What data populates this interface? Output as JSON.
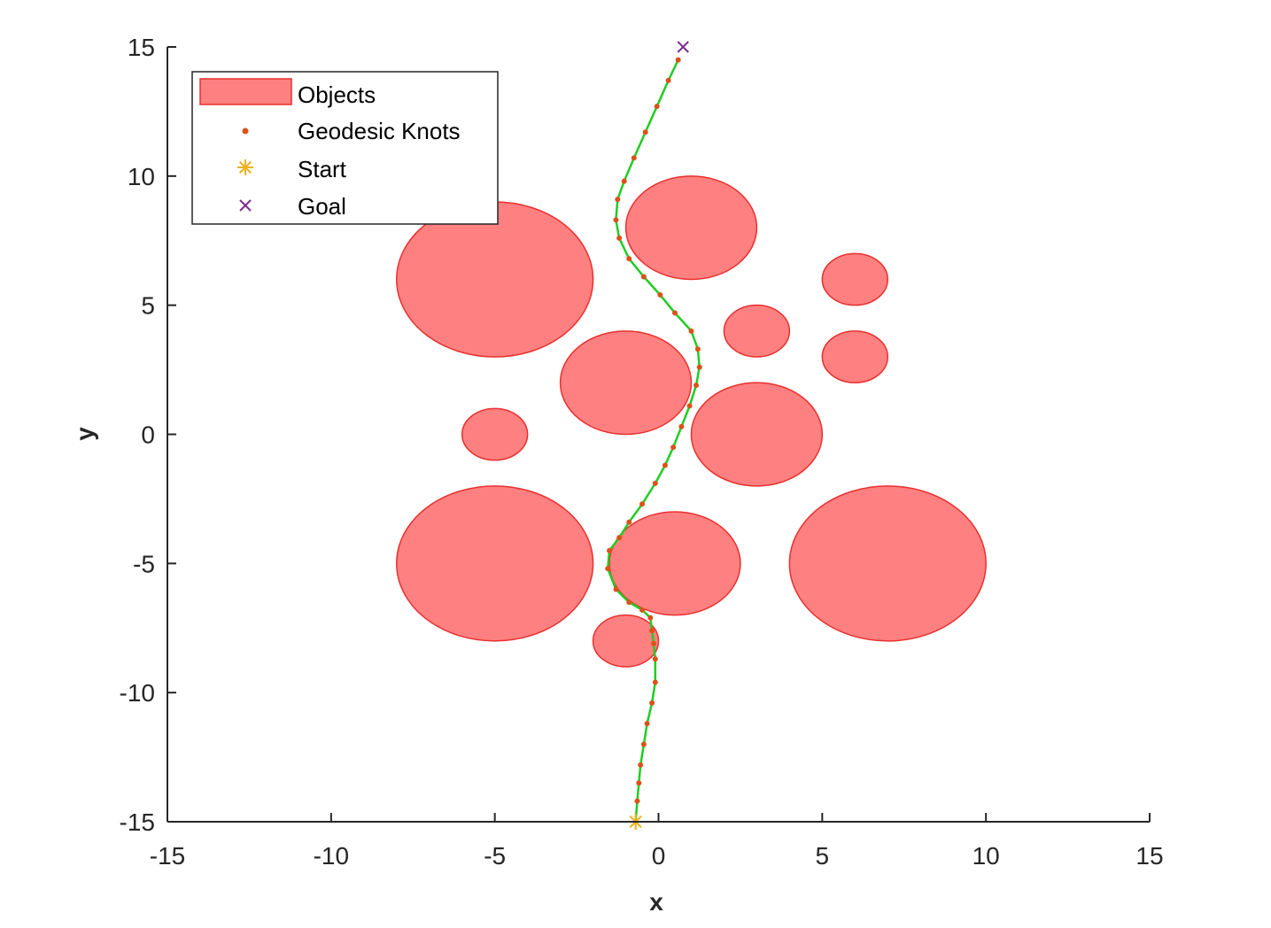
{
  "chart_data": {
    "type": "scatter",
    "title": "",
    "xlabel": "x",
    "ylabel": "y",
    "xlim": [
      -15,
      15
    ],
    "ylim": [
      -15,
      15
    ],
    "xticks": [
      -15,
      -10,
      -5,
      0,
      5,
      10,
      15
    ],
    "yticks": [
      -15,
      -10,
      -5,
      0,
      5,
      10,
      15
    ],
    "xtick_labels": [
      "-15",
      "-10",
      "-5",
      "0",
      "5",
      "10",
      "15"
    ],
    "ytick_labels": [
      "-15",
      "-10",
      "-5",
      "0",
      "5",
      "10",
      "15"
    ],
    "grid": false,
    "legend": {
      "placement": "top-left",
      "entries": [
        "Objects",
        "Geodesic Knots",
        "Start",
        "Goal"
      ]
    },
    "colors": {
      "objects_fill": "#ff8080",
      "objects_edge": "#e8302f",
      "path": "#22cc22",
      "knots": "#d95319",
      "start": "#edb120",
      "goal": "#7e2f8e"
    },
    "objects": [
      {
        "cx": -5,
        "cy": 6,
        "rx": 3,
        "ry": 3
      },
      {
        "cx": 1,
        "cy": 8,
        "rx": 2,
        "ry": 2
      },
      {
        "cx": 6,
        "cy": 6,
        "rx": 1,
        "ry": 1
      },
      {
        "cx": 3,
        "cy": 4,
        "rx": 1,
        "ry": 1
      },
      {
        "cx": 6,
        "cy": 3,
        "rx": 1,
        "ry": 1
      },
      {
        "cx": -1,
        "cy": 2,
        "rx": 2,
        "ry": 2
      },
      {
        "cx": -5,
        "cy": 0,
        "rx": 1,
        "ry": 1
      },
      {
        "cx": 3,
        "cy": 0,
        "rx": 2,
        "ry": 2
      },
      {
        "cx": -5,
        "cy": -5,
        "rx": 3,
        "ry": 3
      },
      {
        "cx": 0.5,
        "cy": -5,
        "rx": 2,
        "ry": 2
      },
      {
        "cx": 7,
        "cy": -5,
        "rx": 3,
        "ry": 3
      },
      {
        "cx": -1,
        "cy": -8,
        "rx": 1,
        "ry": 1
      }
    ],
    "series": [
      {
        "name": "Geodesic Knots",
        "x": [
          -0.7,
          -0.65,
          -0.6,
          -0.55,
          -0.45,
          -0.35,
          -0.2,
          -0.1,
          -0.1,
          -0.15,
          -0.2,
          -0.25,
          -0.5,
          -0.9,
          -1.3,
          -1.55,
          -1.5,
          -1.2,
          -0.9,
          -0.5,
          -0.1,
          0.2,
          0.45,
          0.7,
          0.95,
          1.15,
          1.25,
          1.2,
          1.0,
          0.5,
          0.05,
          -0.45,
          -0.9,
          -1.2,
          -1.3,
          -1.25,
          -1.05,
          -0.75,
          -0.4,
          -0.05,
          0.3,
          0.6
        ],
        "y": [
          -15,
          -14.2,
          -13.5,
          -12.8,
          -12.0,
          -11.2,
          -10.4,
          -9.6,
          -8.7,
          -8.1,
          -7.6,
          -7.1,
          -6.8,
          -6.5,
          -6.0,
          -5.2,
          -4.5,
          -4.0,
          -3.4,
          -2.7,
          -1.9,
          -1.2,
          -0.5,
          0.3,
          1.1,
          1.9,
          2.6,
          3.3,
          4.0,
          4.7,
          5.4,
          6.1,
          6.8,
          7.6,
          8.3,
          9.1,
          9.8,
          10.7,
          11.7,
          12.7,
          13.7,
          14.5
        ]
      },
      {
        "name": "Start",
        "x": [
          -0.7
        ],
        "y": [
          -15
        ]
      },
      {
        "name": "Goal",
        "x": [
          0.75
        ],
        "y": [
          15
        ]
      }
    ]
  }
}
